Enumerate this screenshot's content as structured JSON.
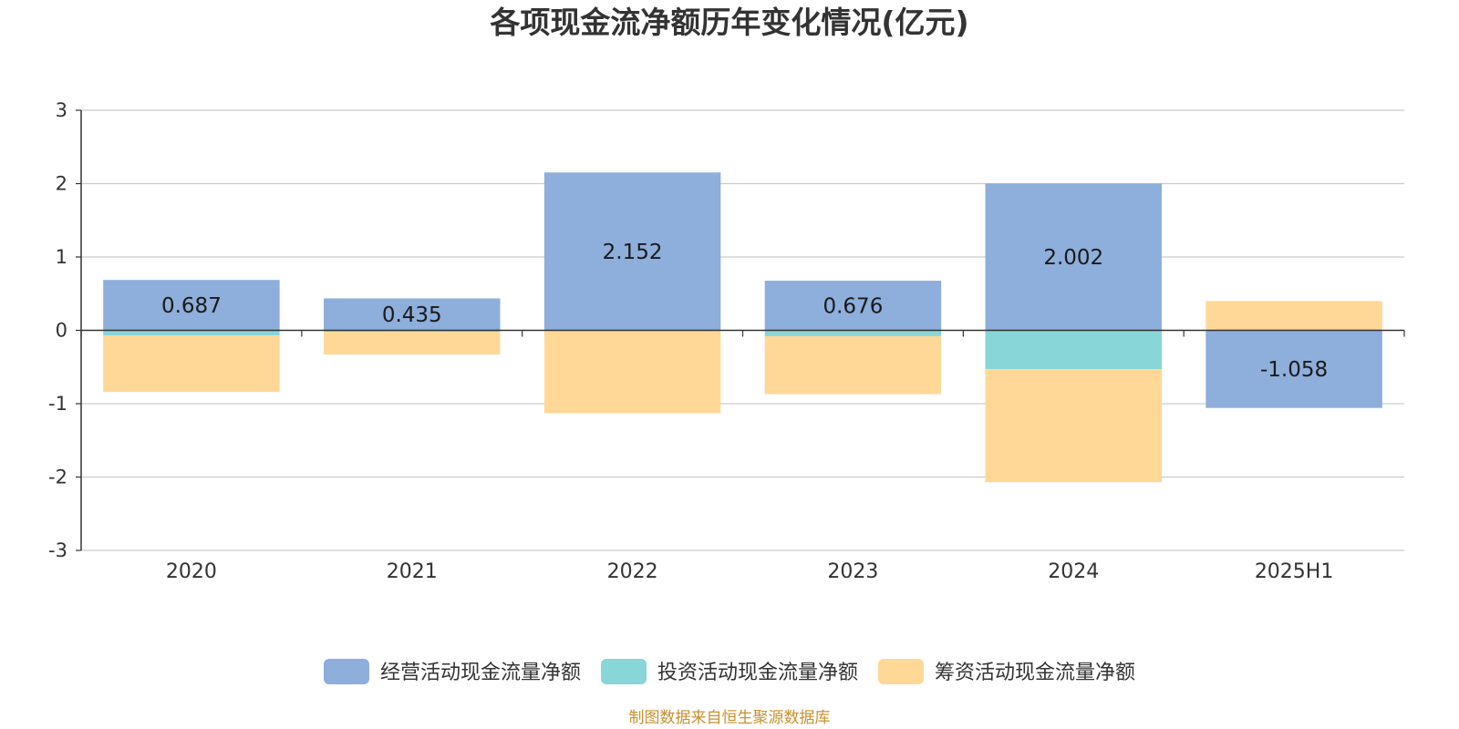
{
  "chart_data": {
    "type": "bar",
    "stacked": true,
    "title": "各项现金流净额历年变化情况(亿元)",
    "categories": [
      "2020",
      "2021",
      "2022",
      "2023",
      "2024",
      "2025H1"
    ],
    "ylim": [
      -3,
      3
    ],
    "yticks": [
      "3",
      "2",
      "1",
      "0",
      "-1",
      "-2",
      "-3"
    ],
    "ytick_values": [
      3,
      2,
      1,
      0,
      -1,
      -2,
      -3
    ],
    "grid": true,
    "legend_position": "bottom-center",
    "series": [
      {
        "name": "经营活动现金流量净额",
        "color": "#8eaedb",
        "values": [
          0.687,
          0.435,
          2.152,
          0.676,
          2.002,
          -1.058
        ],
        "labels": [
          "0.687",
          "0.435",
          "2.152",
          "0.676",
          "2.002",
          "-1.058"
        ]
      },
      {
        "name": "投资活动现金流量净额",
        "color": "#88d6d8",
        "values": [
          -0.07,
          -0.02,
          -0.01,
          -0.08,
          -0.53,
          0.0
        ]
      },
      {
        "name": "筹资活动现金流量净额",
        "color": "#ffd898",
        "values": [
          -0.77,
          -0.31,
          -1.12,
          -0.79,
          -1.54,
          0.4
        ]
      }
    ]
  },
  "source": {
    "text": "制图数据来自恒生聚源数据库",
    "color": "#c9902f"
  }
}
